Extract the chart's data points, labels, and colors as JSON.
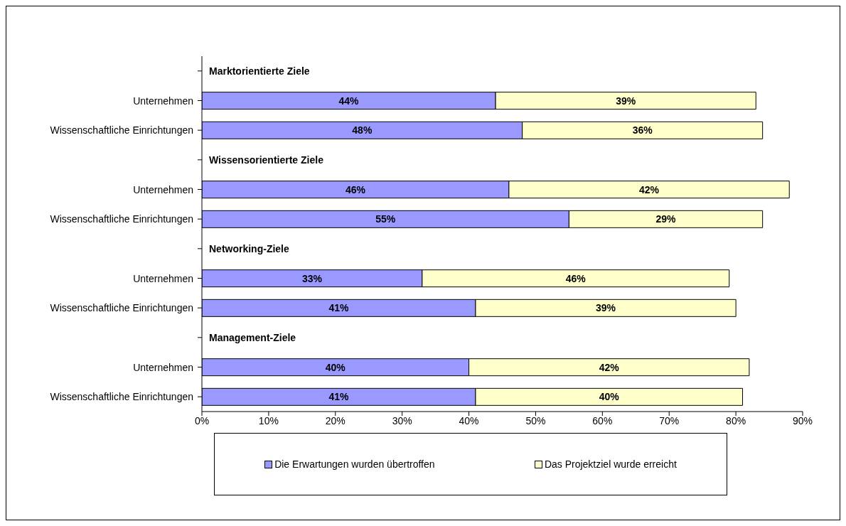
{
  "chart_data": {
    "type": "bar",
    "orientation": "horizontal",
    "stacked": true,
    "categories": [
      null,
      "Unternehmen",
      "Wissenschaftliche Einrichtungen",
      null,
      "Unternehmen",
      "Wissenschaftliche Einrichtungen",
      null,
      "Unternehmen",
      "Wissenschaftliche Einrichtungen",
      null,
      "Unternehmen",
      "Wissenschaftliche Einrichtungen"
    ],
    "annotations": [
      "Marktorientierte Ziele",
      "Wissensorientierte Ziele",
      "Networking-Ziele",
      "Management-Ziele"
    ],
    "series": [
      {
        "name": "Die Erwartungen wurden übertroffen",
        "color": "#9999ff",
        "values": [
          null,
          44,
          48,
          null,
          46,
          55,
          null,
          33,
          41,
          null,
          40,
          41
        ],
        "value_labels": [
          null,
          "44%",
          "48%",
          null,
          "46%",
          "55%",
          null,
          "33%",
          "41%",
          null,
          "40%",
          "41%"
        ]
      },
      {
        "name": "Das Projektziel wurde erreicht",
        "color": "#ffffcc",
        "values": [
          null,
          39,
          36,
          null,
          42,
          29,
          null,
          46,
          39,
          null,
          42,
          40
        ],
        "value_labels": [
          null,
          "39%",
          "36%",
          null,
          "42%",
          "29%",
          null,
          "46%",
          "39%",
          null,
          "42%",
          "40%"
        ]
      }
    ],
    "xlim": [
      0,
      90
    ],
    "xticks": [
      {
        "value": 0,
        "label": "0%"
      },
      {
        "value": 10,
        "label": "10%"
      },
      {
        "value": 20,
        "label": "20%"
      },
      {
        "value": 30,
        "label": "30%"
      },
      {
        "value": 40,
        "label": "40%"
      },
      {
        "value": 50,
        "label": "50%"
      },
      {
        "value": 60,
        "label": "60%"
      },
      {
        "value": 70,
        "label": "70%"
      },
      {
        "value": 80,
        "label": "80%"
      },
      {
        "value": 90,
        "label": "90%"
      }
    ],
    "grid": false,
    "legend": "bottom"
  }
}
